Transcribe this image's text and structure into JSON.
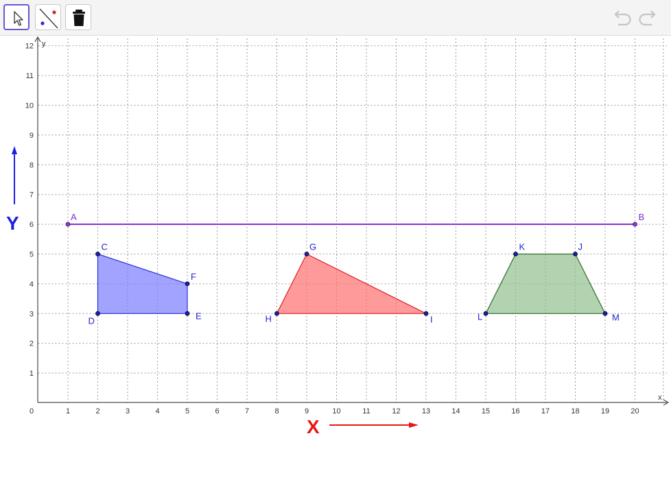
{
  "toolbar": {
    "tools": [
      {
        "name": "move-tool",
        "icon": "cursor-arrow-icon",
        "active": true
      },
      {
        "name": "line-tool",
        "icon": "line-through-two-points-icon",
        "active": false
      },
      {
        "name": "delete-tool",
        "icon": "trash-icon",
        "active": false
      }
    ],
    "undo_icon": "undo-icon",
    "redo_icon": "redo-icon"
  },
  "graph": {
    "x_axis_label": "x",
    "y_axis_label": "y",
    "x_ticks": [
      0,
      1,
      2,
      3,
      4,
      5,
      6,
      7,
      8,
      9,
      10,
      11,
      12,
      13,
      14,
      15,
      16,
      17,
      18,
      19,
      20
    ],
    "y_ticks": [
      1,
      2,
      3,
      4,
      5,
      6,
      7,
      8,
      9,
      10,
      11,
      12
    ],
    "grid": true,
    "grid_style": "dotted",
    "segment_AB": {
      "color": "#7a2fc9",
      "points": [
        {
          "label": "A",
          "x": 1,
          "y": 6
        },
        {
          "label": "B",
          "x": 20,
          "y": 6
        }
      ]
    },
    "polygons": [
      {
        "name": "quadrilateral-CFED",
        "fill": "#7a7aff",
        "stroke": "#2c2ce0",
        "label_color": "#2222cc",
        "points": [
          {
            "label": "C",
            "x": 2,
            "y": 5
          },
          {
            "label": "F",
            "x": 5,
            "y": 4
          },
          {
            "label": "E",
            "x": 5,
            "y": 3
          },
          {
            "label": "D",
            "x": 2,
            "y": 3
          }
        ]
      },
      {
        "name": "triangle-HGI",
        "fill": "#ff6f6f",
        "stroke": "#e02020",
        "label_color": "#2222cc",
        "points": [
          {
            "label": "H",
            "x": 8,
            "y": 3
          },
          {
            "label": "G",
            "x": 9,
            "y": 5
          },
          {
            "label": "I",
            "x": 13,
            "y": 3
          }
        ]
      },
      {
        "name": "trapezoid-LKJM",
        "fill": "#92c08f",
        "stroke": "#2e6a2e",
        "label_color": "#2222cc",
        "points": [
          {
            "label": "L",
            "x": 15,
            "y": 3
          },
          {
            "label": "K",
            "x": 16,
            "y": 5
          },
          {
            "label": "J",
            "x": 18,
            "y": 5
          },
          {
            "label": "M",
            "x": 19,
            "y": 3
          }
        ]
      }
    ],
    "annotations": {
      "y_arrow": {
        "text": "Y",
        "color": "#1d1de0"
      },
      "x_arrow": {
        "text": "X",
        "color": "#e81717"
      }
    }
  }
}
